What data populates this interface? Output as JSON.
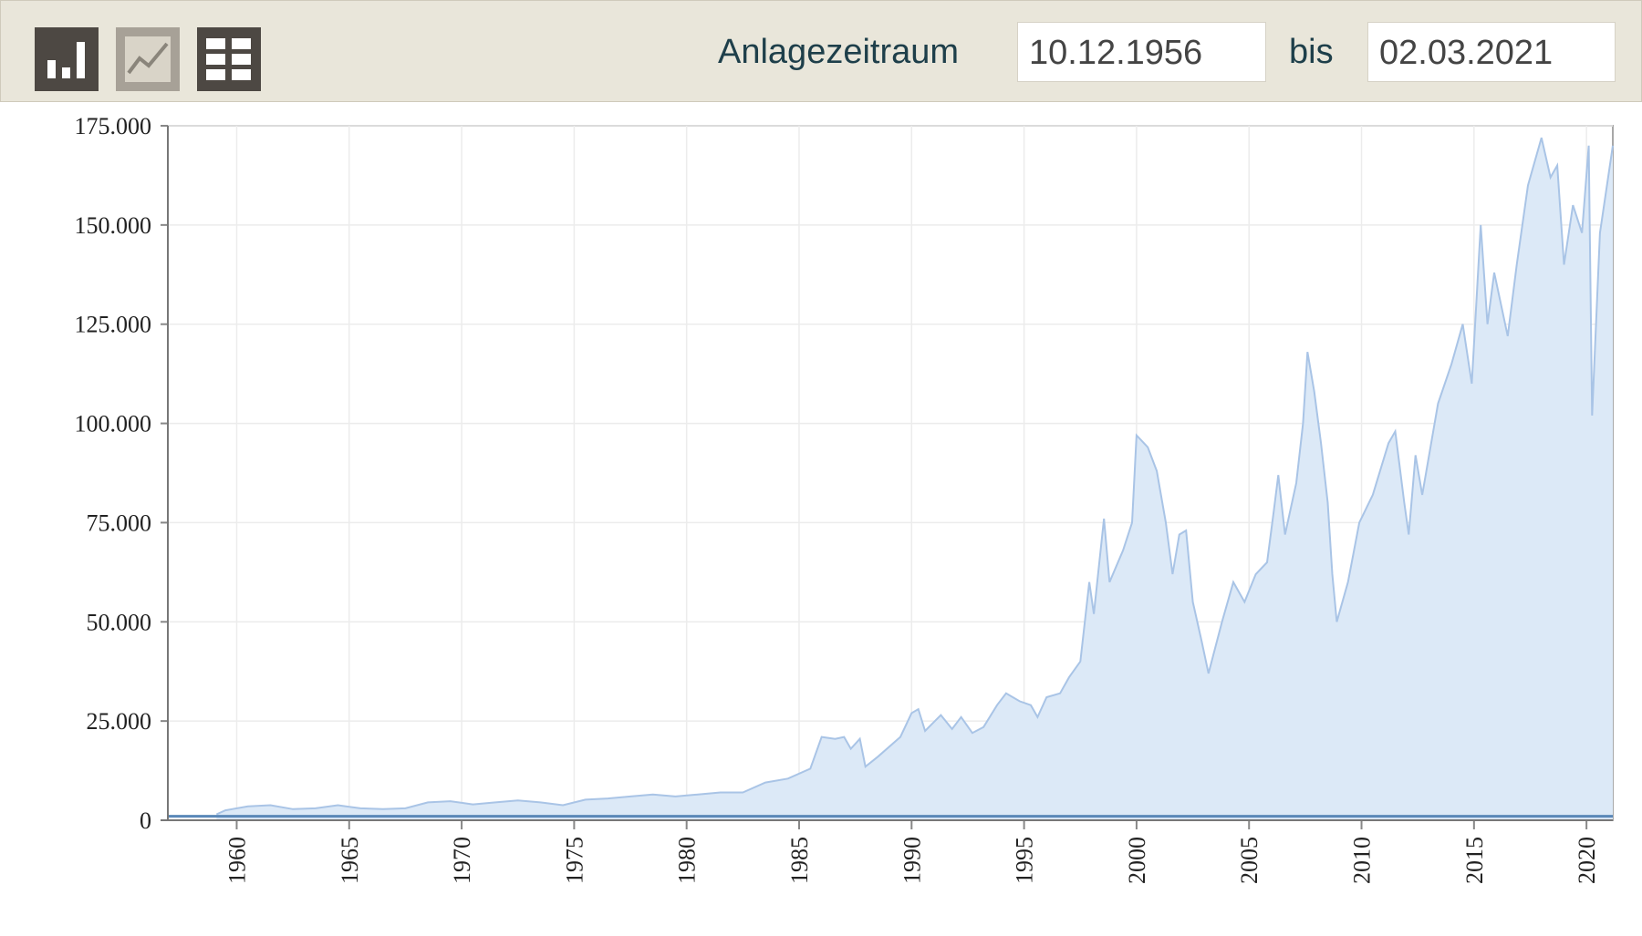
{
  "toolbar": {
    "period_label": "Anlagezeitraum",
    "start_date": "10.12.1956",
    "separator": "bis",
    "end_date": "02.03.2021"
  },
  "chart_data": {
    "type": "area",
    "xlim": [
      1956.94,
      2021.17
    ],
    "xticks": [
      1960,
      1965,
      1970,
      1975,
      1980,
      1985,
      1990,
      1995,
      2000,
      2005,
      2010,
      2015,
      2020
    ],
    "ylim": [
      0,
      175000
    ],
    "yticks": [
      0,
      {
        "value": 25000,
        "label": "25.000"
      },
      {
        "value": 50000,
        "label": "50.000"
      },
      {
        "value": 75000,
        "label": "75.000"
      },
      {
        "value": 100000,
        "label": "100.000"
      },
      {
        "value": 125000,
        "label": "125.000"
      },
      {
        "value": 150000,
        "label": "150.000"
      },
      {
        "value": 175000,
        "label": "175.000"
      }
    ],
    "grid": true,
    "series": [
      {
        "color": "#a9c4e6",
        "fill": "#dce9f7",
        "x": [
          1959.1,
          1959.5,
          1960.5,
          1961.5,
          1962.5,
          1963.5,
          1964.5,
          1965.5,
          1966.5,
          1967.5,
          1968.5,
          1969.5,
          1970.5,
          1971.5,
          1972.5,
          1973.5,
          1974.5,
          1975.5,
          1976.5,
          1977.5,
          1978.5,
          1979.5,
          1980.5,
          1981.5,
          1982.5,
          1983.5,
          1984.5,
          1985.5,
          1986.0,
          1986.6,
          1987.0,
          1987.3,
          1987.7,
          1987.95,
          1988.5,
          1989.5,
          1990.0,
          1990.3,
          1990.6,
          1991.3,
          1991.8,
          1992.2,
          1992.7,
          1993.2,
          1993.8,
          1994.2,
          1994.8,
          1995.3,
          1995.6,
          1996.0,
          1996.6,
          1997.0,
          1997.5,
          1997.7,
          1997.9,
          1998.1,
          1998.55,
          1998.8,
          1999.4,
          1999.8,
          2000.0,
          2000.5,
          2000.9,
          2001.3,
          2001.6,
          2001.9,
          2002.2,
          2002.5,
          2002.9,
          2003.2,
          2003.8,
          2004.3,
          2004.8,
          2005.3,
          2005.8,
          2006.1,
          2006.3,
          2006.6,
          2007.1,
          2007.4,
          2007.6,
          2007.9,
          2008.2,
          2008.5,
          2008.7,
          2008.9,
          2009.4,
          2009.9,
          2010.5,
          2011.2,
          2011.5,
          2011.9,
          2012.1,
          2012.4,
          2012.7,
          2013.4,
          2014.0,
          2014.5,
          2014.9,
          2015.3,
          2015.6,
          2015.9,
          2016.5,
          2016.9,
          2017.4,
          2018.0,
          2018.4,
          2018.7,
          2019.0,
          2019.4,
          2019.8,
          2020.1,
          2020.25,
          2020.6,
          2021.17
        ],
        "values": [
          1500,
          2500,
          3500,
          3800,
          2800,
          3000,
          3800,
          3000,
          2800,
          3000,
          4500,
          4800,
          4000,
          4500,
          5000,
          4500,
          3800,
          5200,
          5500,
          6000,
          6500,
          6000,
          6500,
          7000,
          7000,
          9500,
          10500,
          13000,
          21000,
          20500,
          21000,
          18000,
          20500,
          13500,
          16000,
          21000,
          27000,
          28000,
          22500,
          26500,
          23000,
          26000,
          22000,
          23500,
          29000,
          32000,
          30000,
          29000,
          26000,
          31000,
          32000,
          36000,
          40000,
          50000,
          60000,
          52000,
          76000,
          60000,
          68000,
          75000,
          97000,
          94000,
          88000,
          75000,
          62000,
          72000,
          73000,
          55000,
          45000,
          37000,
          50000,
          60000,
          55000,
          62000,
          65000,
          78000,
          87000,
          72000,
          85000,
          100000,
          118000,
          108000,
          95000,
          80000,
          62000,
          50000,
          60000,
          75000,
          82000,
          95000,
          98000,
          80000,
          72000,
          92000,
          82000,
          105000,
          115000,
          125000,
          110000,
          150000,
          125000,
          138000,
          122000,
          140000,
          160000,
          172000,
          162000,
          165000,
          140000,
          155000,
          148000,
          170000,
          102000,
          148000,
          170000
        ]
      },
      {
        "color": "#5a88b8",
        "x": [
          1956.94,
          2021.17
        ],
        "values": [
          1000,
          1000
        ]
      }
    ]
  }
}
